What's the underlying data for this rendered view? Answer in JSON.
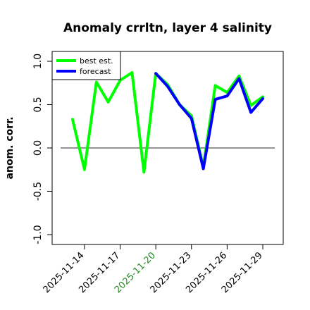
{
  "chart_data": {
    "type": "line",
    "title": "Anomaly crrltn, layer 4 salinity",
    "xlabel": "",
    "ylabel": "anom. corr.",
    "x": [
      "2025-11-13",
      "2025-11-14",
      "2025-11-15",
      "2025-11-16",
      "2025-11-17",
      "2025-11-18",
      "2025-11-19",
      "2025-11-20",
      "2025-11-21",
      "2025-11-22",
      "2025-11-23",
      "2025-11-24",
      "2025-11-25",
      "2025-11-26",
      "2025-11-27",
      "2025-11-28",
      "2025-11-29"
    ],
    "xticks": [
      "2025-11-14",
      "2025-11-17",
      "2025-11-20",
      "2025-11-23",
      "2025-11-26",
      "2025-11-29"
    ],
    "highlight_tick": "2025-11-20",
    "highlight_color": "#228b22",
    "yticks": [
      "-1.0",
      "-0.5",
      "0.0",
      "0.5",
      "1.0"
    ],
    "ylim": [
      -1.0,
      1.0
    ],
    "reference_line": 0.0,
    "legend_position": "top-left",
    "series": [
      {
        "name": "best est.",
        "color": "#00ff00",
        "values": [
          0.33,
          -0.25,
          0.76,
          0.53,
          0.78,
          0.87,
          -0.28,
          0.86,
          0.73,
          0.5,
          0.37,
          -0.22,
          0.72,
          0.64,
          0.83,
          0.49,
          0.59
        ]
      },
      {
        "name": "forecast",
        "color": "#0000ff",
        "values": [
          null,
          null,
          null,
          null,
          null,
          null,
          null,
          0.86,
          0.71,
          0.5,
          0.34,
          -0.24,
          0.56,
          0.6,
          0.8,
          0.41,
          0.57
        ]
      }
    ]
  }
}
